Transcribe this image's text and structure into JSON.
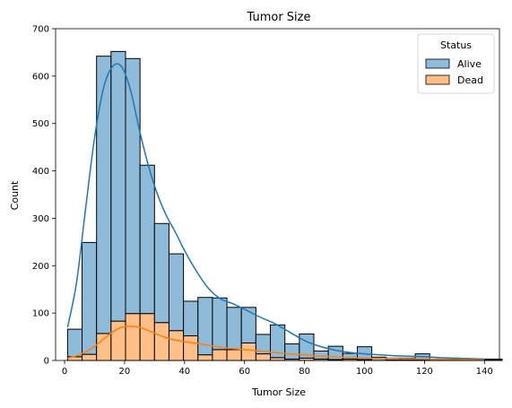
{
  "chart_data": {
    "type": "bar",
    "title": "Tumor Size",
    "xlabel": "Tumor Size",
    "ylabel": "Count",
    "xlim": [
      -3,
      145
    ],
    "ylim": [
      0,
      700
    ],
    "xticks": [
      0,
      20,
      40,
      60,
      80,
      100,
      120,
      140
    ],
    "yticks": [
      0,
      100,
      200,
      300,
      400,
      500,
      600,
      700
    ],
    "bin_start": 1,
    "bin_width": 4.83,
    "stacked": true,
    "legend": {
      "title": "Status",
      "placement": "top-right"
    },
    "series": [
      {
        "name": "Alive",
        "color": "#1f77b4",
        "values": [
          58,
          236,
          585,
          569,
          538,
          313,
          209,
          162,
          73,
          121,
          109,
          89,
          75,
          41,
          69,
          32,
          51,
          17,
          28,
          12,
          27,
          7,
          4,
          4,
          13,
          3,
          2,
          3,
          2,
          2
        ]
      },
      {
        "name": "Dead",
        "color": "#ff7f0e",
        "values": [
          8,
          13,
          57,
          83,
          99,
          99,
          80,
          63,
          52,
          12,
          23,
          23,
          37,
          14,
          6,
          3,
          5,
          3,
          2,
          3,
          2,
          0,
          1,
          1,
          1,
          0,
          1,
          0,
          1,
          1
        ]
      }
    ],
    "kde": [
      {
        "name": "Alive",
        "color": "#1f77b4",
        "x": [
          1,
          4,
          7,
          10,
          13,
          16,
          19,
          22,
          25,
          28,
          31,
          34,
          37,
          40,
          44,
          48,
          52,
          56,
          60,
          65,
          70,
          75,
          80,
          85,
          90,
          95,
          100,
          105,
          110,
          115,
          120,
          125,
          130,
          135,
          140
        ],
        "y": [
          70,
          165,
          320,
          470,
          575,
          620,
          620,
          570,
          485,
          410,
          350,
          305,
          270,
          232,
          188,
          152,
          130,
          120,
          108,
          92,
          78,
          60,
          42,
          30,
          22,
          17,
          14,
          12,
          10,
          9,
          8,
          6,
          5,
          4,
          3
        ]
      },
      {
        "name": "Dead",
        "color": "#ff7f0e",
        "x": [
          1,
          4,
          7,
          10,
          13,
          16,
          19,
          22,
          25,
          28,
          31,
          34,
          37,
          40,
          44,
          48,
          52,
          56,
          60,
          65,
          70,
          75,
          80,
          85,
          90,
          95,
          100,
          110,
          120,
          130,
          140
        ],
        "y": [
          5,
          10,
          18,
          30,
          45,
          60,
          70,
          72,
          70,
          63,
          55,
          48,
          43,
          40,
          36,
          32,
          28,
          25,
          23,
          20,
          17,
          14,
          12,
          9,
          8,
          6,
          5,
          4,
          3,
          2,
          1
        ]
      }
    ]
  }
}
